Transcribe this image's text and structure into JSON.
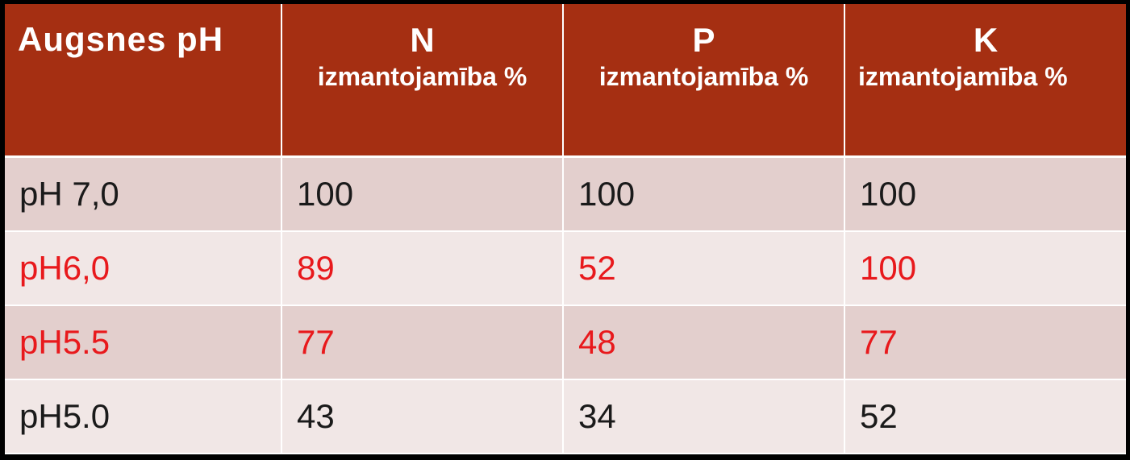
{
  "table": {
    "headers": [
      {
        "title": "Augsnes  pH",
        "sub": ""
      },
      {
        "title": "N",
        "sub": "izmantojamība %"
      },
      {
        "title": "P",
        "sub": "izmantojamība %"
      },
      {
        "title": "K",
        "sub": "izmantojamība %"
      }
    ],
    "rows": [
      {
        "ph": "pH 7,0",
        "n": "100",
        "p": "100",
        "k": "100",
        "highlight": false
      },
      {
        "ph": "pH6,0",
        "n": "89",
        "p": "52",
        "k": "100",
        "highlight": true
      },
      {
        "ph": "pH5.5",
        "n": "77",
        "p": "48",
        "k": "77",
        "highlight": true
      },
      {
        "ph": "pH5.0",
        "n": "43",
        "p": "34",
        "k": "52",
        "highlight": false
      }
    ]
  },
  "colors": {
    "header_bg": "#a52f12",
    "row_odd": "#e3cfcd",
    "row_even": "#f1e7e6",
    "highlight_text": "#e8191c"
  }
}
